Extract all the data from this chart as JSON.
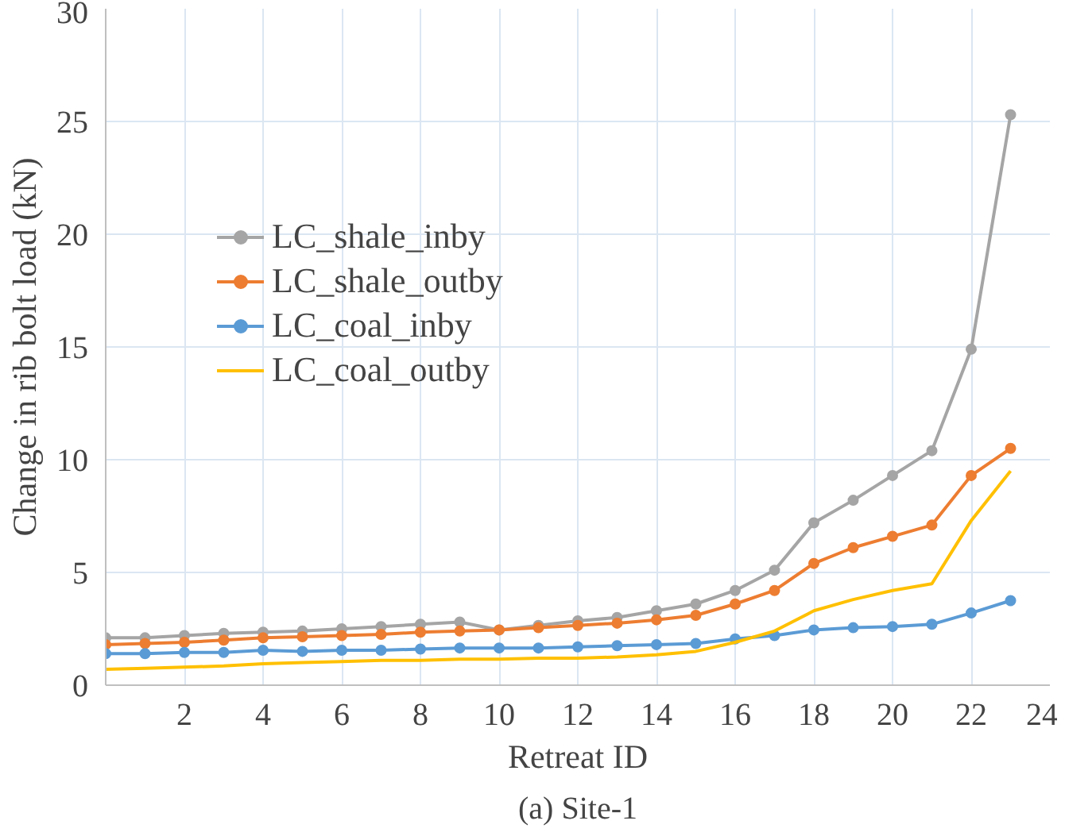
{
  "chart_data": {
    "type": "line",
    "xlabel": "Retreat ID",
    "ylabel": "Change in rib bolt load (kN)",
    "annotations": [
      "(a) Site-1"
    ],
    "x": [
      0,
      1,
      2,
      3,
      4,
      5,
      6,
      7,
      8,
      9,
      10,
      11,
      12,
      13,
      14,
      15,
      16,
      17,
      18,
      19,
      20,
      21,
      22,
      23
    ],
    "series": [
      {
        "name": "LC_shale_inby",
        "color": "#a5a5a5",
        "marker": "circle",
        "values": [
          2.1,
          2.1,
          2.2,
          2.3,
          2.35,
          2.4,
          2.5,
          2.6,
          2.7,
          2.8,
          2.45,
          2.65,
          2.85,
          3.0,
          3.3,
          3.6,
          4.2,
          5.1,
          7.2,
          8.2,
          9.3,
          10.4,
          14.9,
          25.3
        ]
      },
      {
        "name": "LC_shale_outby",
        "color": "#ed7d31",
        "marker": "circle",
        "values": [
          1.8,
          1.85,
          1.9,
          2.0,
          2.1,
          2.15,
          2.2,
          2.25,
          2.35,
          2.4,
          2.45,
          2.55,
          2.65,
          2.75,
          2.9,
          3.1,
          3.6,
          4.2,
          5.4,
          6.1,
          6.6,
          7.1,
          9.3,
          10.5
        ]
      },
      {
        "name": "LC_coal_inby",
        "color": "#5b9bd5",
        "marker": "circle",
        "values": [
          1.4,
          1.4,
          1.45,
          1.45,
          1.55,
          1.5,
          1.55,
          1.55,
          1.6,
          1.65,
          1.65,
          1.65,
          1.7,
          1.75,
          1.8,
          1.85,
          2.05,
          2.2,
          2.45,
          2.55,
          2.6,
          2.7,
          3.2,
          3.75
        ]
      },
      {
        "name": "LC_coal_outby",
        "color": "#ffc000",
        "marker": "none",
        "values": [
          0.7,
          0.75,
          0.8,
          0.85,
          0.95,
          1.0,
          1.05,
          1.1,
          1.1,
          1.15,
          1.15,
          1.2,
          1.2,
          1.25,
          1.35,
          1.5,
          1.9,
          2.4,
          3.3,
          3.8,
          4.2,
          4.5,
          7.3,
          9.5
        ]
      }
    ],
    "xlim": [
      0,
      24
    ],
    "ylim": [
      0,
      30
    ],
    "xticks": [
      2,
      4,
      6,
      8,
      10,
      12,
      14,
      16,
      18,
      20,
      22,
      24
    ],
    "yticks": [
      0,
      5,
      10,
      15,
      20,
      25,
      30
    ],
    "grid": true,
    "legend": "top left",
    "line_style": "solid"
  }
}
